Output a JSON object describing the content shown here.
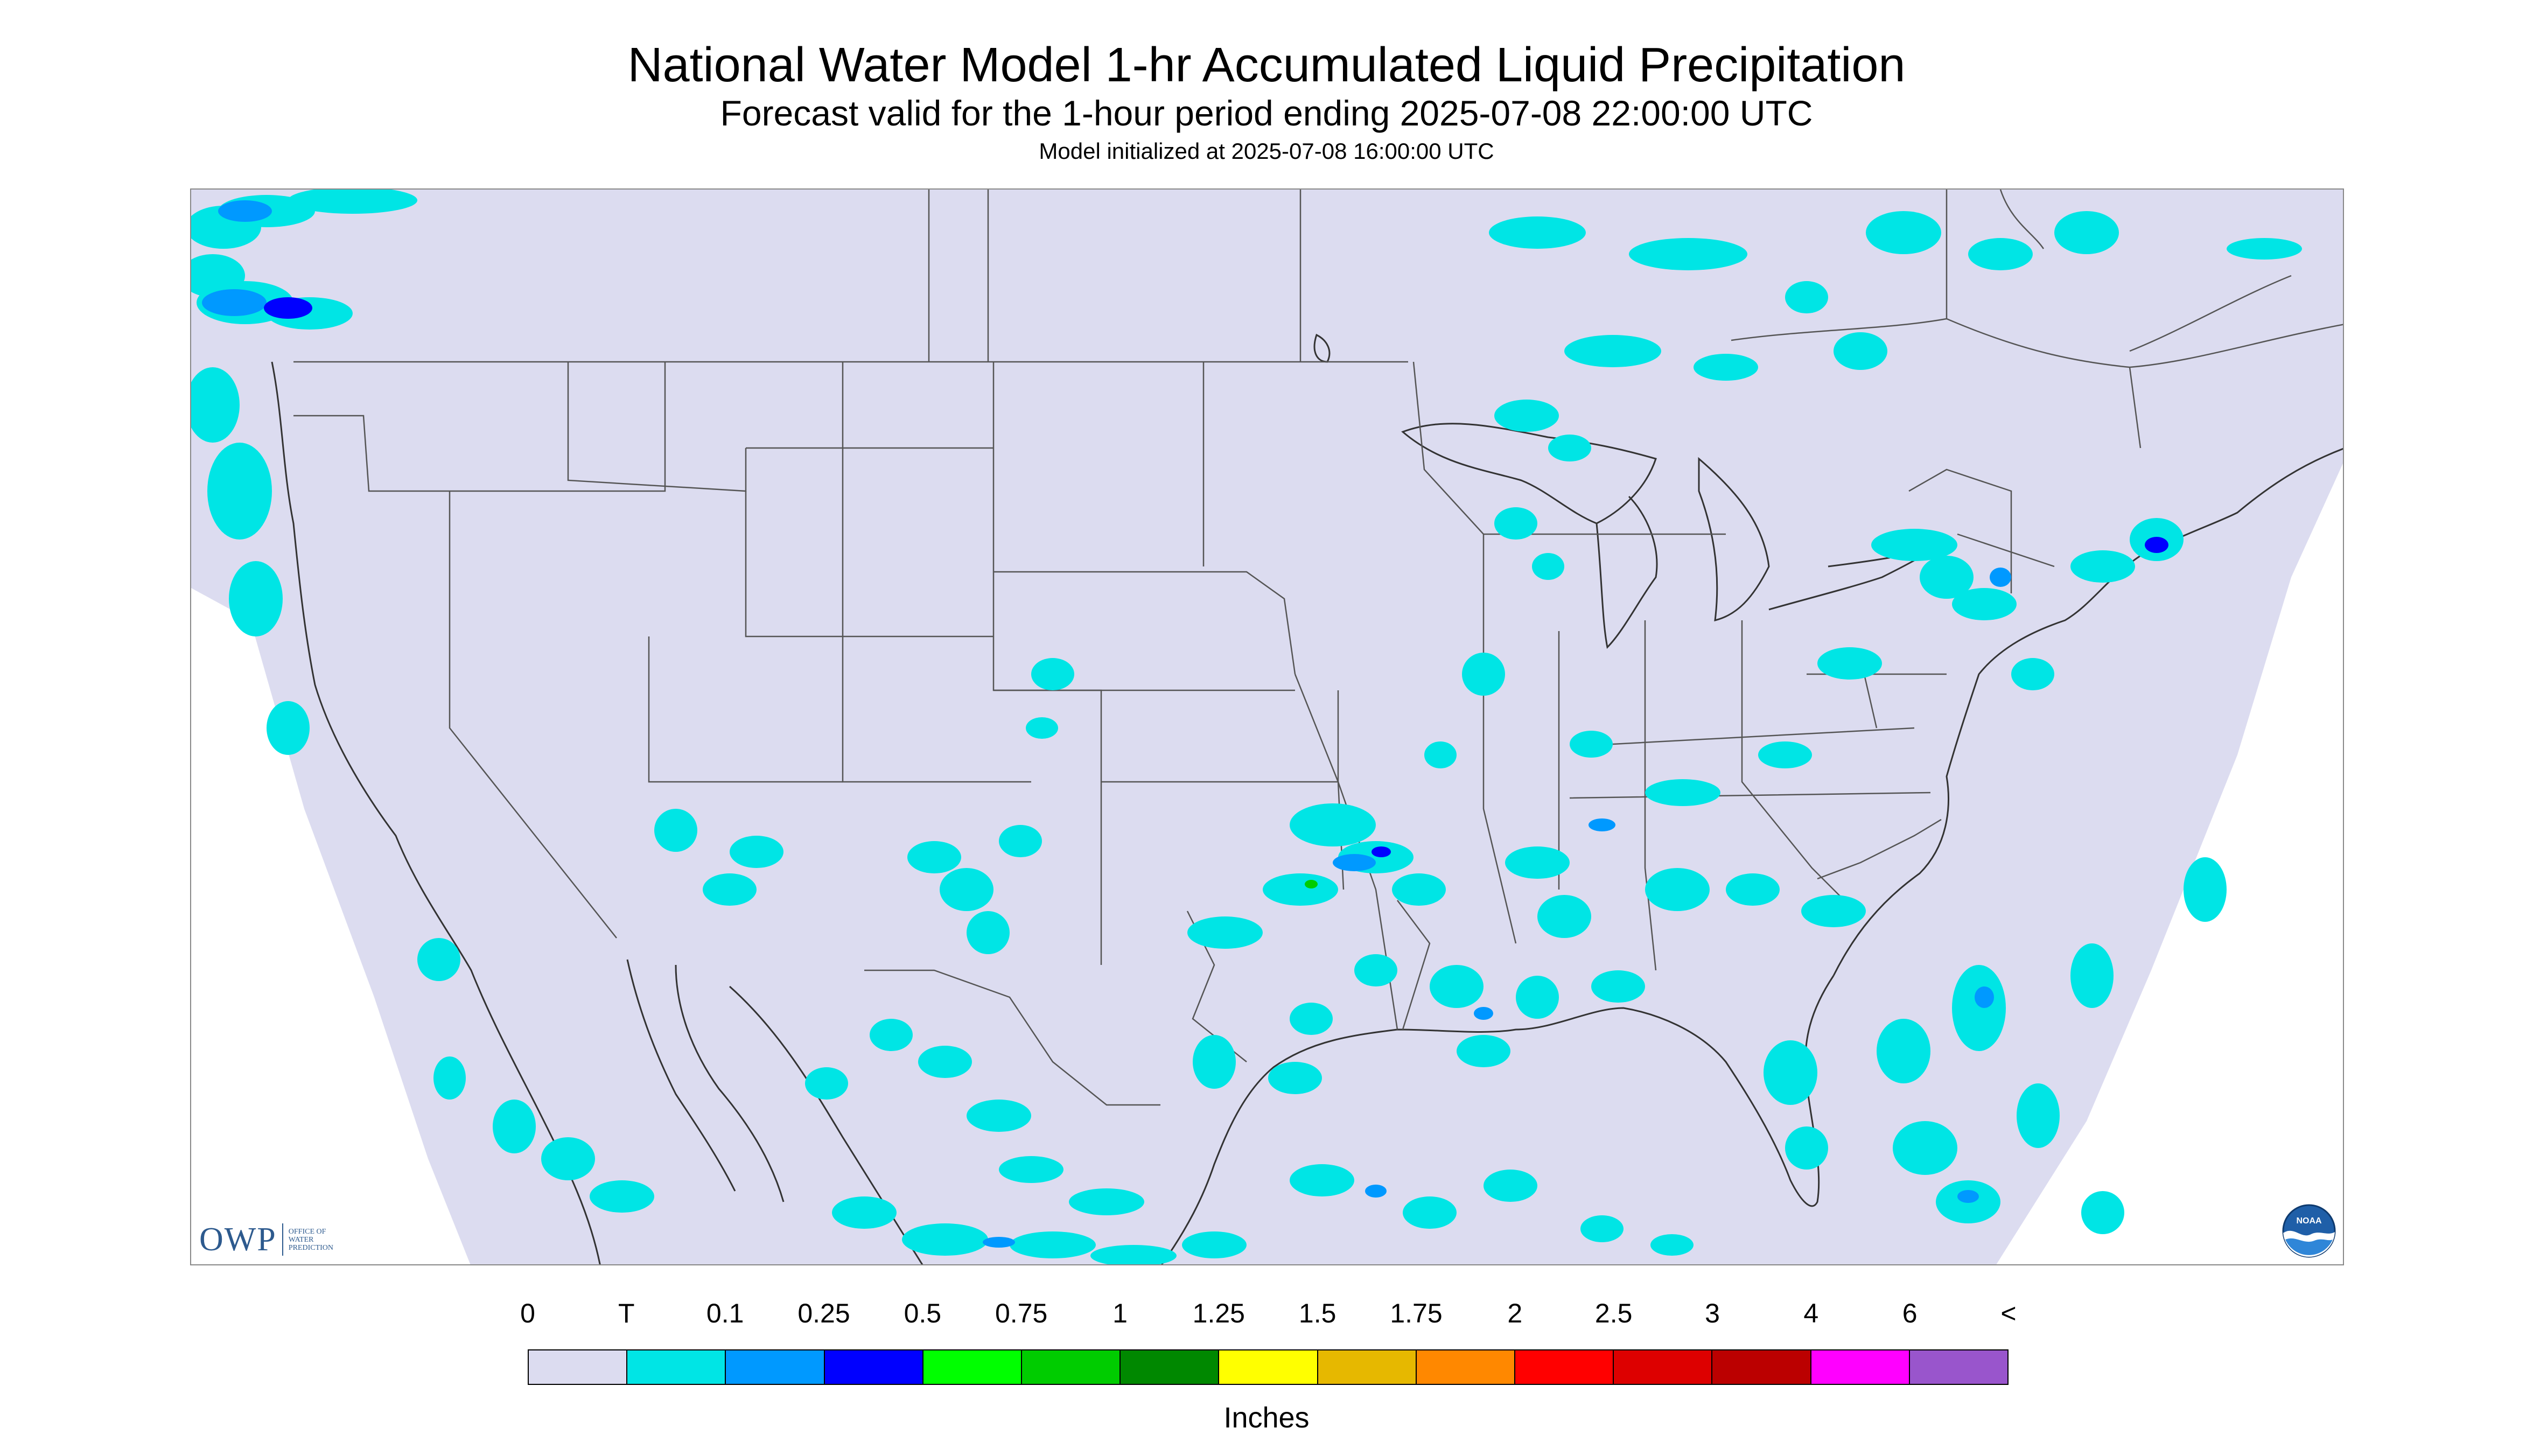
{
  "header": {
    "title": "National Water Model 1-hr Accumulated Liquid Precipitation",
    "subtitle": "Forecast valid for the 1-hour period ending 2025-07-08 22:00:00 UTC",
    "init": "Model initialized at 2025-07-08 16:00:00 UTC"
  },
  "logos": {
    "owp_big": "OWP",
    "owp_small": [
      "Office of",
      "Water",
      "Prediction"
    ],
    "noaa_text": "NOAA"
  },
  "legend": {
    "labels": [
      "0",
      "T",
      "0.1",
      "0.25",
      "0.5",
      "0.75",
      "1",
      "1.25",
      "1.5",
      "1.75",
      "2",
      "2.5",
      "3",
      "4",
      "6",
      "<"
    ],
    "colors": [
      "#dcdcf0",
      "#00e5e5",
      "#0099ff",
      "#0000ff",
      "#00ff00",
      "#00cc00",
      "#008800",
      "#ffff00",
      "#e6b800",
      "#ff8800",
      "#ff0000",
      "#dd0000",
      "#bb0000",
      "#ff00ff",
      "#9955cc"
    ],
    "units": "Inches"
  },
  "map": {
    "background_color": "#dcdcf0",
    "outside_color": "#ffffff",
    "boundary_color": "#333333"
  }
}
